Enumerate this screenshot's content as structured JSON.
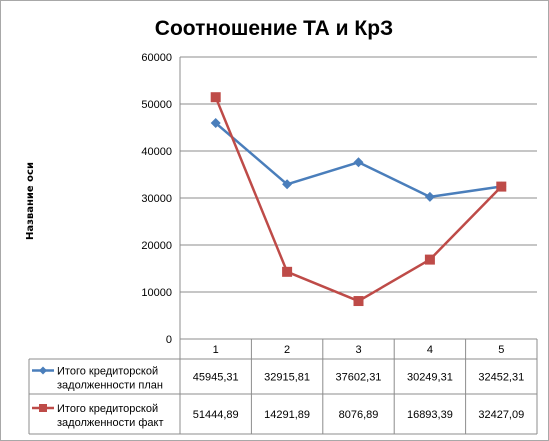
{
  "chart_data": {
    "type": "line",
    "title": "Соотношение ТА и КрЗ",
    "xlabel": "",
    "ylabel": "Название оси",
    "categories": [
      "1",
      "2",
      "3",
      "4",
      "5"
    ],
    "ylim": [
      0,
      60000
    ],
    "yticks": [
      "0",
      "10000",
      "20000",
      "30000",
      "40000",
      "50000",
      "60000"
    ],
    "grid": true,
    "legend_position": "data-table-left",
    "series": [
      {
        "name_line1": "Итого кредиторской",
        "name_line2": "задолженности план",
        "values": [
          45945.31,
          32915.81,
          37602.31,
          30249.31,
          32452.31
        ],
        "labels": [
          "45945,31",
          "32915,81",
          "37602,31",
          "30249,31",
          "32452,31"
        ],
        "color": "#4a7ebb",
        "marker": "diamond"
      },
      {
        "name_line1": "Итого кредиторской",
        "name_line2": "задолженности факт",
        "values": [
          51444.89,
          14291.89,
          8076.89,
          16893.39,
          32427.09
        ],
        "labels": [
          "51444,89",
          "14291,89",
          "8076,89",
          "16893,39",
          "32427,09"
        ],
        "color": "#be4b48",
        "marker": "square"
      }
    ]
  }
}
